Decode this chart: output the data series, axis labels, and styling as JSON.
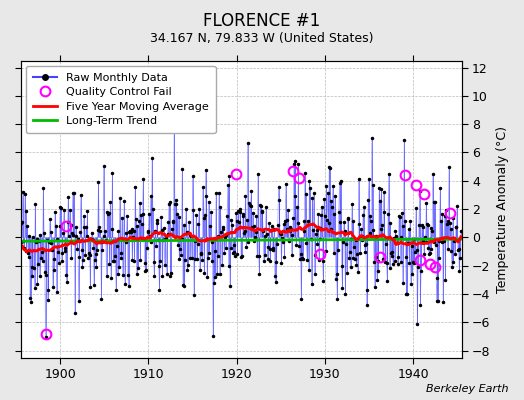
{
  "title": "FLORENCE #1",
  "subtitle": "34.167 N, 79.833 W (United States)",
  "ylabel": "Temperature Anomaly (°C)",
  "credit": "Berkeley Earth",
  "xlim": [
    1895.5,
    1945.5
  ],
  "ylim": [
    -8.5,
    12.5
  ],
  "yticks": [
    -8,
    -6,
    -4,
    -2,
    0,
    2,
    4,
    6,
    8,
    10,
    12
  ],
  "xticks": [
    1900,
    1910,
    1920,
    1930,
    1940
  ],
  "fig_bg_color": "#e8e8e8",
  "plot_bg_color": "#ffffff",
  "raw_color": "#4444ff",
  "raw_alpha": 0.75,
  "dot_color": "#000000",
  "qc_color": "#ff00ff",
  "moving_avg_color": "#ff0000",
  "trend_color": "#00bb00",
  "legend_fontsize": 8,
  "title_fontsize": 12,
  "subtitle_fontsize": 9,
  "credit_fontsize": 8,
  "seed": 42,
  "qc_times": [
    1898.4,
    1900.7,
    1919.9,
    1926.4,
    1927.1,
    1929.5,
    1936.2,
    1939.1,
    1940.3,
    1940.8,
    1941.2,
    1941.9,
    1942.5,
    1944.2
  ],
  "qc_vals": [
    -6.8,
    0.8,
    4.5,
    4.7,
    4.2,
    -1.2,
    -1.4,
    4.4,
    3.7,
    -1.6,
    3.1,
    -1.9,
    -2.1,
    1.7
  ]
}
